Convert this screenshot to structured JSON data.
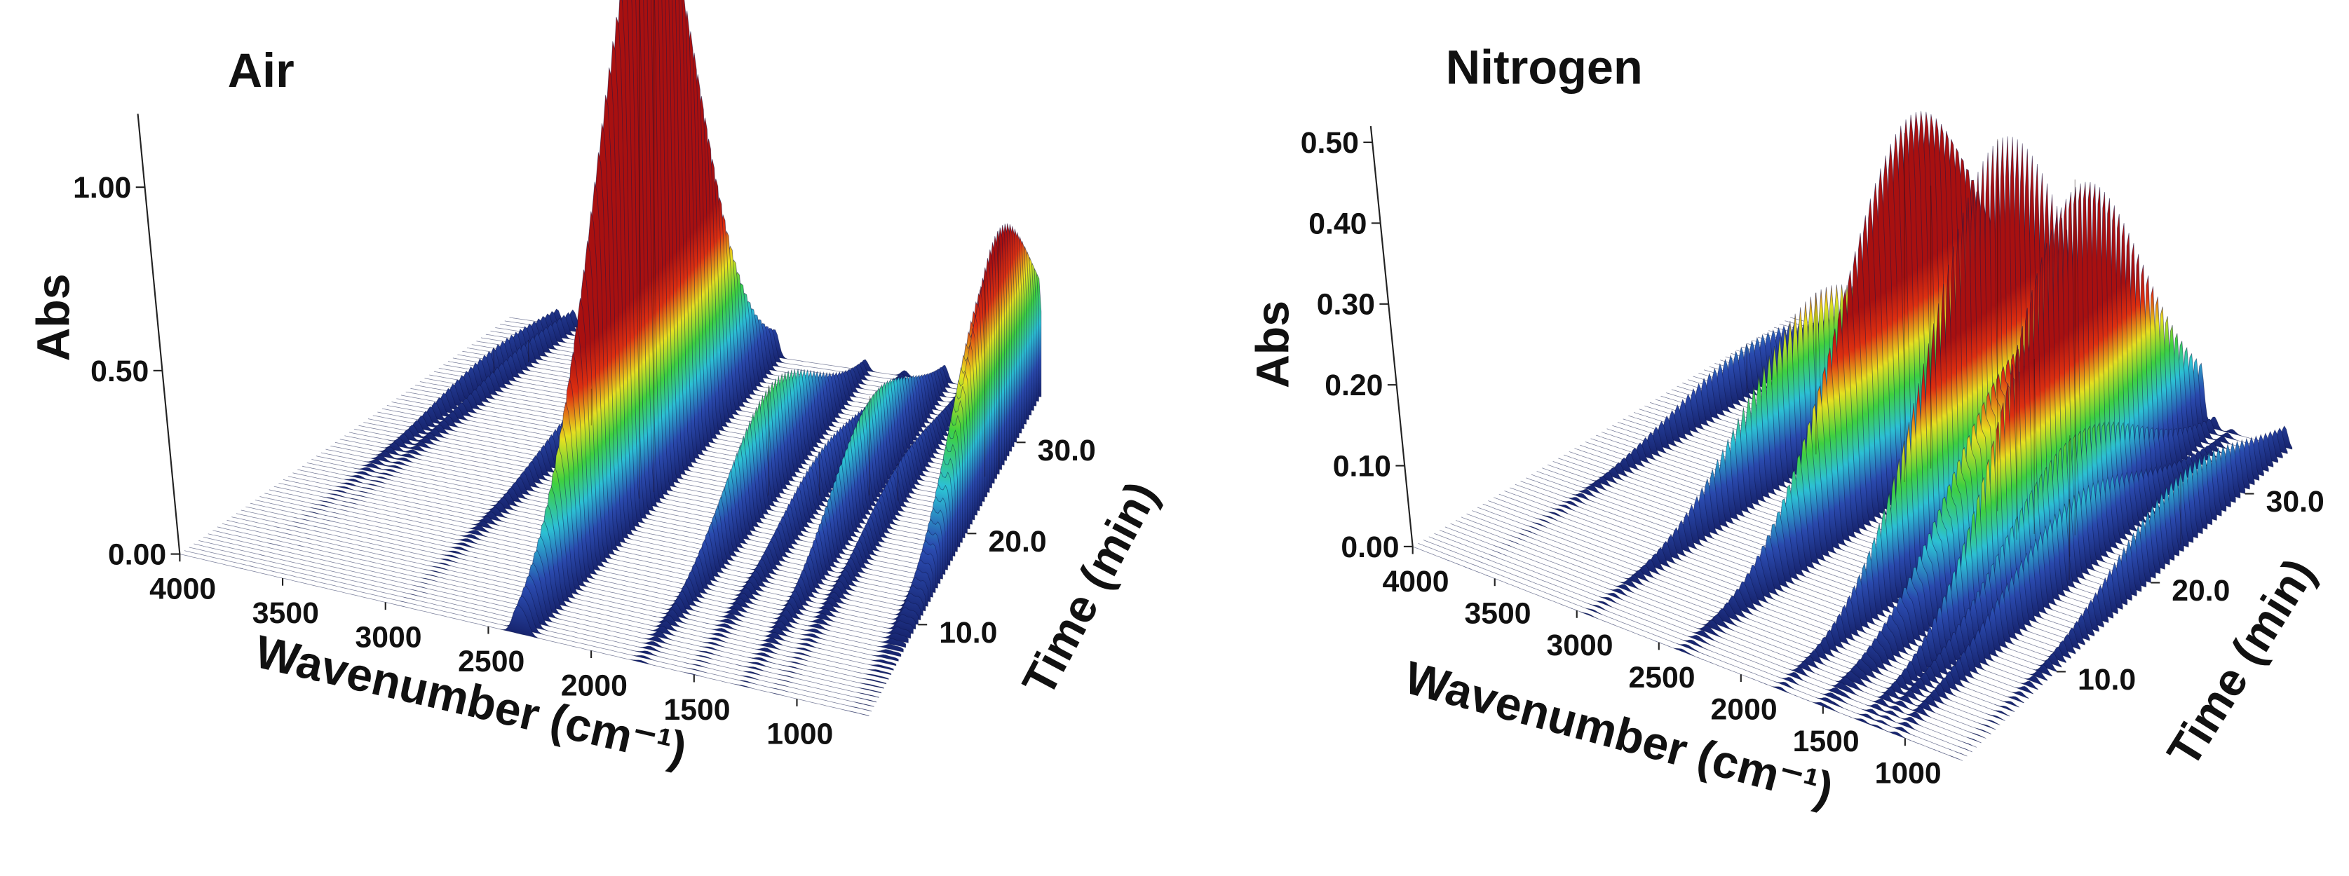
{
  "chart_data": [
    {
      "type": "surface",
      "title": "Air",
      "xlabel": "Wavenumber (cm⁻¹)",
      "ylabel": "Time (min)",
      "zlabel": "Abs",
      "xlim": [
        4000,
        650
      ],
      "xticks": [
        4000,
        3500,
        3000,
        2500,
        2000,
        1500,
        1000
      ],
      "ylim": [
        0,
        35
      ],
      "yticks": [
        {
          "value": 10,
          "label": "10.0"
        },
        {
          "value": 20,
          "label": "20.0"
        },
        {
          "value": 30,
          "label": "30.0"
        }
      ],
      "zlim": [
        0,
        1.2
      ],
      "zticks": [
        {
          "value": 0,
          "label": "0.00"
        },
        {
          "value": 0.5,
          "label": "0.50"
        },
        {
          "value": 1,
          "label": "1.00"
        }
      ],
      "colors": [
        "#17246e",
        "#2a4aae",
        "#2cc0d4",
        "#3ed040",
        "#e6e020",
        "#de3010",
        "#a81010"
      ],
      "peaks": {
        "x": [
          3700,
          3600,
          2930,
          2362,
          2322,
          1760,
          1510,
          1260,
          1100,
          720,
          668
        ],
        "time": [
          28,
          30,
          24,
          17,
          18,
          20,
          21,
          22,
          22,
          26,
          27
        ],
        "values": [
          0.07,
          0.06,
          0.1,
          1.25,
          1.22,
          0.3,
          0.12,
          0.27,
          0.1,
          0.5,
          0.62
        ]
      }
    },
    {
      "type": "surface",
      "title": "Nitrogen",
      "xlabel": "Wavenumber (cm⁻¹)",
      "ylabel": "Time (min)",
      "zlabel": "Abs",
      "xlim": [
        4000,
        650
      ],
      "xticks": [
        4000,
        3500,
        3000,
        2500,
        2000,
        1500,
        1000
      ],
      "ylim": [
        0,
        35
      ],
      "yticks": [
        {
          "value": 10,
          "label": "10.0"
        },
        {
          "value": 20,
          "label": "20.0"
        },
        {
          "value": 30,
          "label": "30.0"
        }
      ],
      "zlim": [
        0,
        0.52
      ],
      "zticks": [
        {
          "value": 0,
          "label": "0.00"
        },
        {
          "value": 0.1,
          "label": "0.10"
        },
        {
          "value": 0.2,
          "label": "0.20"
        },
        {
          "value": 0.3,
          "label": "0.30"
        },
        {
          "value": 0.4,
          "label": "0.40"
        },
        {
          "value": 0.5,
          "label": "0.50"
        }
      ],
      "colors": [
        "#17246e",
        "#2a4aae",
        "#2cc0d4",
        "#3ed040",
        "#e6e020",
        "#de3010",
        "#a81010"
      ],
      "peaks": {
        "x": [
          3650,
          2930,
          2360,
          2320,
          1760,
          1510,
          1460,
          1260,
          1170,
          1050,
          700
        ],
        "time": [
          26,
          22,
          22,
          24,
          22,
          20,
          21,
          22,
          20,
          18,
          24
        ],
        "values": [
          0.06,
          0.2,
          0.38,
          0.28,
          0.46,
          0.22,
          0.2,
          0.44,
          0.15,
          0.1,
          0.09
        ]
      }
    }
  ]
}
